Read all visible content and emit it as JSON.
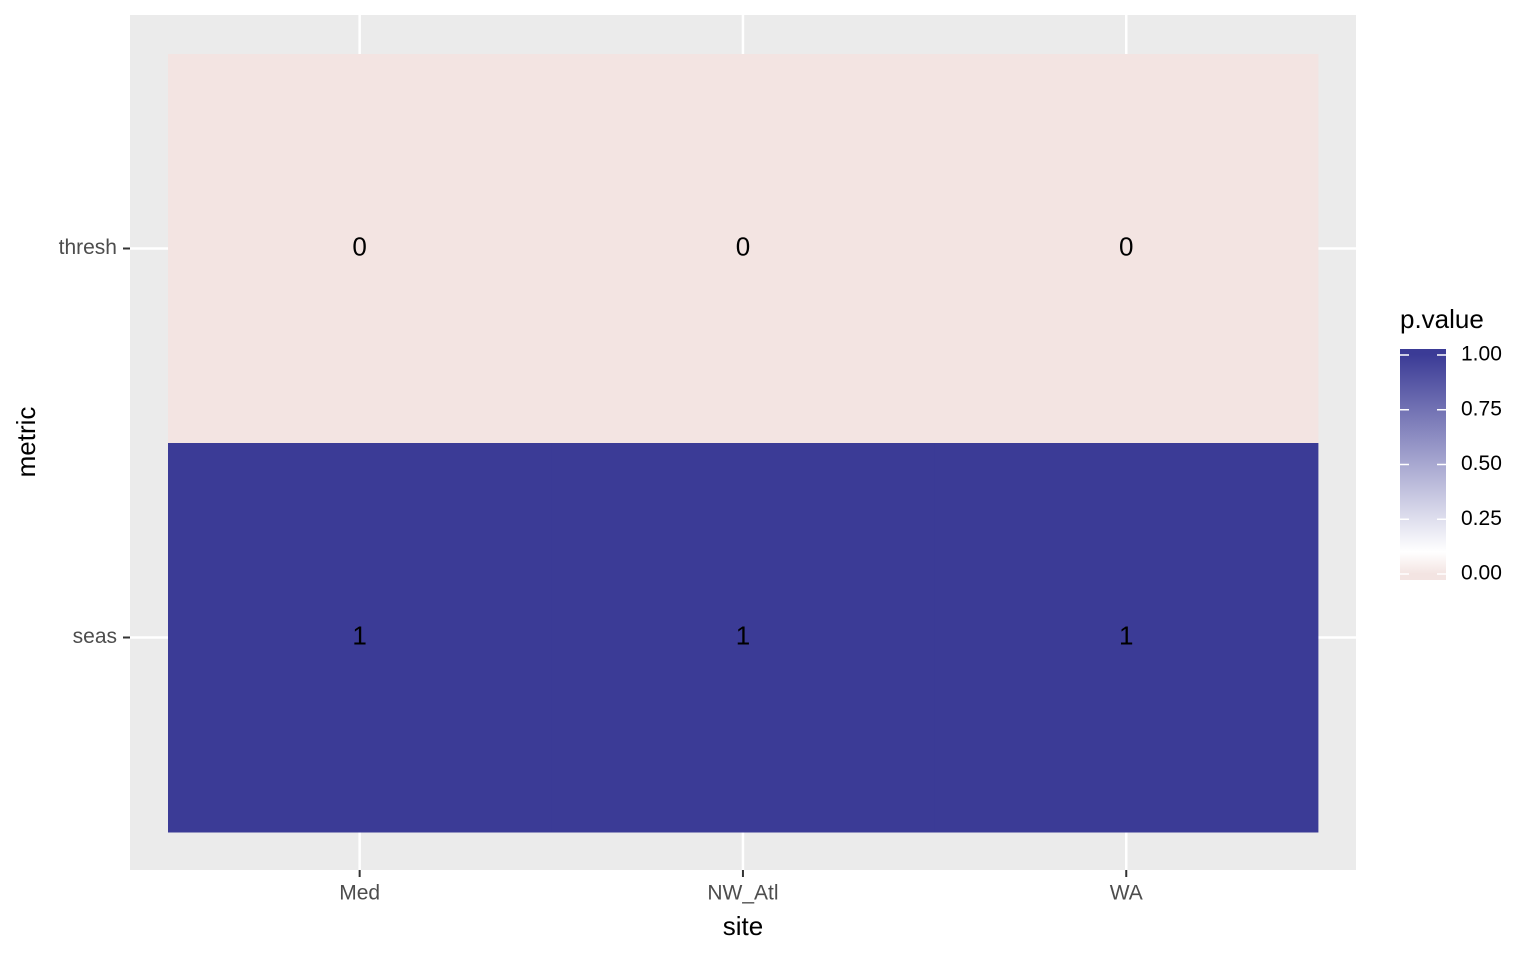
{
  "chart_data": {
    "type": "heatmap",
    "x_label": "site",
    "y_label": "metric",
    "x": [
      "Med",
      "NW_Atl",
      "WA"
    ],
    "y": [
      "thresh",
      "seas"
    ],
    "values": [
      [
        0,
        0,
        0
      ],
      [
        1,
        1,
        1
      ]
    ],
    "legend": {
      "position": "right",
      "title": "p.value",
      "lim": [
        0,
        1
      ],
      "ticks": [
        {
          "value": 0,
          "label": "0.00"
        },
        {
          "value": 0.25,
          "label": "0.25"
        },
        {
          "value": 0.5,
          "label": "0.50"
        },
        {
          "value": 0.75,
          "label": "0.75"
        },
        {
          "value": 1,
          "label": "1.00"
        }
      ],
      "colorscale": [
        {
          "value": 0,
          "color": "#f3e4e2"
        },
        {
          "value": 0.1,
          "color": "#ffffff"
        },
        {
          "value": 1,
          "color": "#3b3b96"
        }
      ]
    },
    "grid": true
  }
}
